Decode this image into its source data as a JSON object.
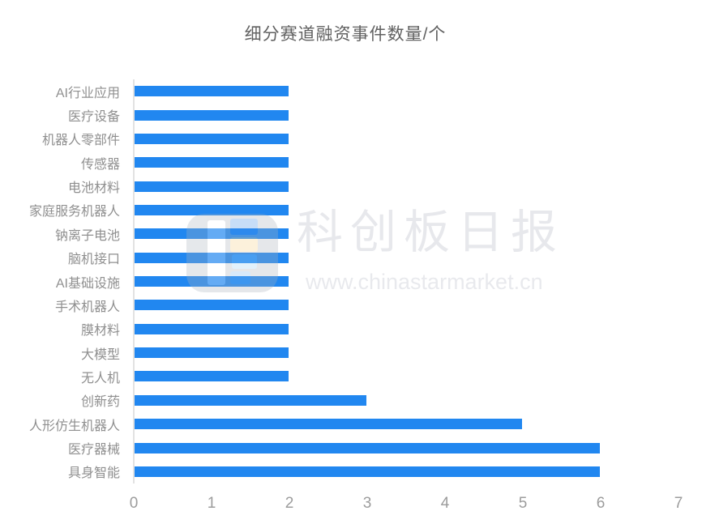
{
  "header": {
    "title": "细分赛道融资事件数量/个"
  },
  "chart_data": {
    "type": "bar",
    "orientation": "horizontal",
    "title": "细分赛道融资事件数量/个",
    "categories": [
      "AI行业应用",
      "医疗设备",
      "机器人零部件",
      "传感器",
      "电池材料",
      "家庭服务机器人",
      "钠离子电池",
      "脑机接口",
      "AI基础设施",
      "手术机器人",
      "膜材料",
      "大模型",
      "无人机",
      "创新药",
      "人形仿生机器人",
      "医疗器械",
      "具身智能"
    ],
    "values": [
      2,
      2,
      2,
      2,
      2,
      2,
      2,
      2,
      2,
      2,
      2,
      2,
      2,
      3,
      5,
      6,
      6
    ],
    "xlabel": "",
    "ylabel": "",
    "xlim": [
      0,
      7
    ],
    "x_ticks": [
      "0",
      "1",
      "2",
      "3",
      "4",
      "5",
      "6",
      "7"
    ],
    "grid": false,
    "legend": "none",
    "bar_color": "#2187F0",
    "axis_line_color": "#e2e2e2",
    "label_color": "#8f8f8f",
    "tick_color": "#9c9c9c",
    "title_color": "#616161"
  },
  "watermark": {
    "brand": "科创板日报",
    "url": "www.chinastarmarket.cn",
    "logo": "star-market-daily-logo"
  }
}
